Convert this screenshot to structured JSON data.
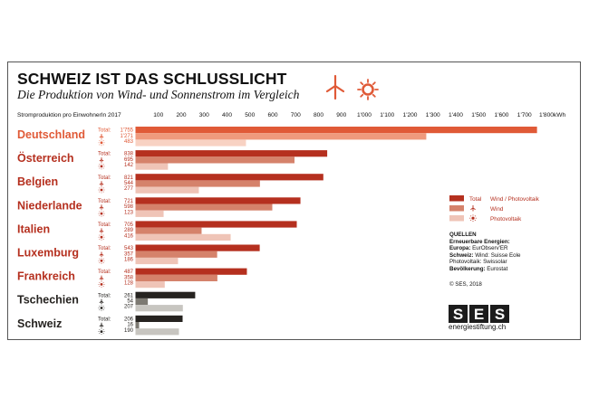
{
  "header": {
    "title": "SCHWEIZ IST DAS SCHLUSSLICHT",
    "subtitle": "Die Produktion von Wind- und Sonnenstrom im Vergleich"
  },
  "chart_data": {
    "type": "bar",
    "orientation": "horizontal",
    "axis_caption": "Stromproduktion pro EinwohnerIn 2017",
    "axis_unit": "kWh",
    "xlim": [
      0,
      1800
    ],
    "ticks": [
      100,
      200,
      300,
      400,
      500,
      600,
      700,
      800,
      900,
      1000,
      1100,
      1200,
      1300,
      1400,
      1500,
      1600,
      1700,
      1800
    ],
    "tick_labels": [
      "100",
      "200",
      "300",
      "400",
      "500",
      "600",
      "700",
      "800",
      "900",
      "1'000",
      "1'100",
      "1'200",
      "1'300",
      "1'400",
      "1'500",
      "1'600",
      "1'700",
      "1'800kWh"
    ],
    "row_labels": [
      "Total:",
      "",
      ""
    ],
    "categories": [
      "Deutschland",
      "Österreich",
      "Belgien",
      "Niederlande",
      "Italien",
      "Luxemburg",
      "Frankreich",
      "Tschechien",
      "Schweiz"
    ],
    "series": [
      {
        "name": "Total",
        "values": [
          1755,
          838,
          821,
          721,
          705,
          543,
          487,
          261,
          206
        ],
        "labels": [
          "1'755",
          "838",
          "821",
          "721",
          "705",
          "543",
          "487",
          "261",
          "206"
        ]
      },
      {
        "name": "Wind",
        "values": [
          1271,
          695,
          544,
          598,
          289,
          357,
          358,
          54,
          16
        ],
        "labels": [
          "1'271",
          "695",
          "544",
          "598",
          "289",
          "357",
          "358",
          "54",
          "16"
        ]
      },
      {
        "name": "Photovoltaik",
        "values": [
          483,
          142,
          277,
          123,
          416,
          186,
          128,
          207,
          190
        ],
        "labels": [
          "483",
          "142",
          "277",
          "123",
          "416",
          "186",
          "128",
          "207",
          "190"
        ]
      }
    ],
    "legend": {
      "position": "right",
      "combined_label": "Wind / Photovoltaik",
      "items": [
        "Total",
        "Wind",
        "Photovoltaik"
      ]
    },
    "colors": {
      "highlight_total": "#e05a37",
      "highlight_wind": "#ef9a7d",
      "highlight_pv": "#f8d2c3",
      "mid_total": "#b5301f",
      "mid_wind": "#d5826b",
      "mid_pv": "#efc4b7",
      "swiss_total": "#262320",
      "swiss_wind": "#7d7a73",
      "swiss_pv": "#c7c5c0",
      "name_highlight": "#e05a37",
      "name_mid": "#b5301f",
      "name_swiss": "#262320",
      "icon": "#e05a37"
    },
    "category_group": [
      "highlight",
      "mid",
      "mid",
      "mid",
      "mid",
      "mid",
      "mid",
      "swiss",
      "swiss"
    ]
  },
  "icons": [
    "wind-turbine-icon",
    "sun-icon"
  ],
  "sources": {
    "heading": "QUELLEN",
    "lines": [
      {
        "bold": "Erneuerbare Energien:",
        "text": ""
      },
      {
        "bold": "Europa:",
        "text": " EurObserv'ER"
      },
      {
        "bold": "Schweiz:",
        "text": " Wind: Suisse Eole"
      },
      {
        "bold": "",
        "text": "Photovoltaik: Swissolar"
      },
      {
        "bold": "Bevölkerung:",
        "text": " Eurostat"
      }
    ],
    "copyright": "© SES, 2018"
  },
  "logo": {
    "letters": [
      "S",
      "E",
      "S"
    ],
    "url_text": "energiestiftung.ch"
  }
}
